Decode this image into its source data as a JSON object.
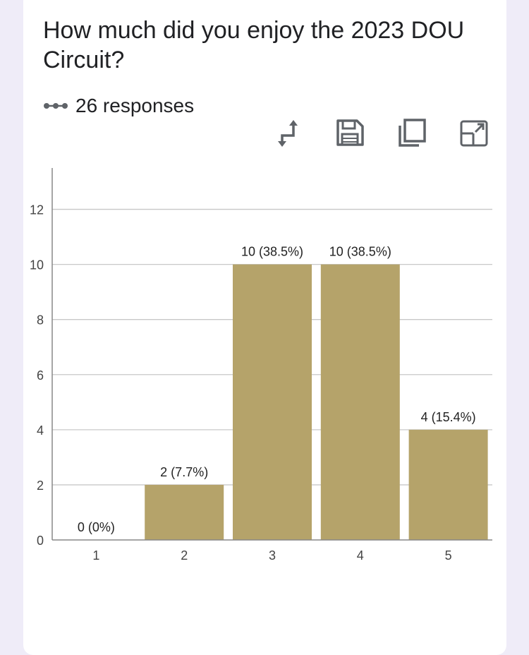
{
  "question": {
    "title": "How much did you enjoy the 2023 DOU Circuit?",
    "responses": "26 responses"
  },
  "toolbar": {
    "icons": [
      "swap-axes-icon",
      "save-icon",
      "copy-icon",
      "expand-icon"
    ]
  },
  "colors": {
    "bar": "#b5a36a",
    "gridline": "#c8c8c8",
    "axis": "#888888",
    "card": "#ffffff",
    "background": "#efecf8",
    "icon": "#5f6368"
  },
  "chart_data": {
    "type": "bar",
    "categories": [
      "1",
      "2",
      "3",
      "4",
      "5"
    ],
    "values": [
      0,
      2,
      10,
      10,
      4
    ],
    "data_labels": [
      "0 (0%)",
      "2 (7.7%)",
      "10 (38.5%)",
      "10 (38.5%)",
      "4 (15.4%)"
    ],
    "yticks": [
      0,
      2,
      4,
      6,
      8,
      10,
      12
    ],
    "ylim": [
      0,
      13.5
    ],
    "grid": true
  }
}
